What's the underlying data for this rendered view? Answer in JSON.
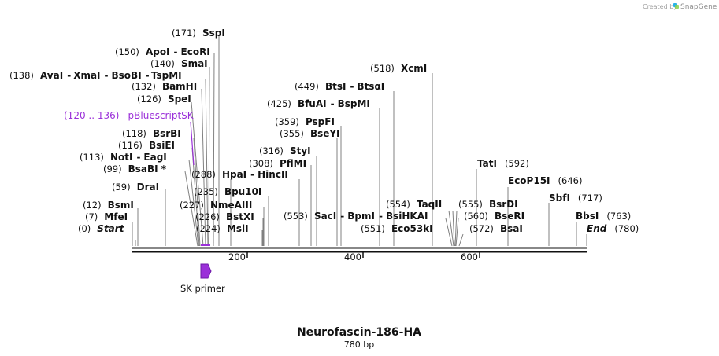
{
  "credit": {
    "prefix": "Created by",
    "product": "SnapGene"
  },
  "map": {
    "title": "Neurofascin-186-HA",
    "length_label": "780 bp",
    "axis_ticks": [
      "200",
      "400",
      "600"
    ],
    "end_labels": {
      "start": "Start",
      "end": "End"
    }
  },
  "colors": {
    "feature": "#9b30d9",
    "backbone": "#111111"
  },
  "site_labels": [
    {
      "pos": "(0)",
      "names": [
        {
          "text": "Start",
          "italic": true
        }
      ]
    },
    {
      "pos": "(7)",
      "names": [
        {
          "text": "MfeI"
        }
      ]
    },
    {
      "pos": "(12)",
      "names": [
        {
          "text": "BsmI"
        }
      ]
    },
    {
      "pos": "(59)",
      "names": [
        {
          "text": "DraI"
        }
      ]
    },
    {
      "pos": "(99)",
      "names": [
        {
          "text": "BsaBI *"
        }
      ]
    },
    {
      "pos": "(113)",
      "names": [
        {
          "text": "NotI"
        },
        {
          "text": "EagI"
        }
      ]
    },
    {
      "pos": "(116)",
      "names": [
        {
          "text": "BsiEI"
        }
      ]
    },
    {
      "pos": "(118)",
      "names": [
        {
          "text": "BsrBI"
        }
      ]
    },
    {
      "pos": "(126)",
      "names": [
        {
          "text": "SpeI"
        }
      ]
    },
    {
      "pos": "(132)",
      "names": [
        {
          "text": "BamHI"
        }
      ]
    },
    {
      "pos": "(138)",
      "names": [
        {
          "text": "AvaI"
        },
        {
          "text": "XmaI"
        },
        {
          "text": "BsoBI"
        },
        {
          "text": "TspMI"
        }
      ]
    },
    {
      "pos": "(140)",
      "names": [
        {
          "text": "SmaI"
        }
      ]
    },
    {
      "pos": "(150)",
      "names": [
        {
          "text": "ApoI"
        },
        {
          "text": "EcoRI"
        }
      ]
    },
    {
      "pos": "(171)",
      "names": [
        {
          "text": "SspI"
        }
      ]
    },
    {
      "pos": "(224)",
      "names": [
        {
          "text": "MslI"
        }
      ]
    },
    {
      "pos": "(226)",
      "names": [
        {
          "text": "BstXI"
        }
      ]
    },
    {
      "pos": "(227)",
      "names": [
        {
          "text": "NmeAIII"
        }
      ]
    },
    {
      "pos": "(235)",
      "names": [
        {
          "text": "Bpu10I"
        }
      ]
    },
    {
      "pos": "(288)",
      "names": [
        {
          "text": "HpaI"
        },
        {
          "text": "HincII"
        }
      ]
    },
    {
      "pos": "(308)",
      "names": [
        {
          "text": "PflMI"
        }
      ]
    },
    {
      "pos": "(316)",
      "names": [
        {
          "text": "StyI"
        }
      ]
    },
    {
      "pos": "(355)",
      "names": [
        {
          "text": "BseYI"
        }
      ]
    },
    {
      "pos": "(359)",
      "names": [
        {
          "text": "PspFI"
        }
      ]
    },
    {
      "pos": "(425)",
      "names": [
        {
          "text": "BfuAI"
        },
        {
          "text": "BspMI"
        }
      ]
    },
    {
      "pos": "(449)",
      "names": [
        {
          "text": "BtsI"
        },
        {
          "text": "BtsαI"
        }
      ]
    },
    {
      "pos": "(518)",
      "names": [
        {
          "text": "XcmI"
        }
      ]
    },
    {
      "pos": "(553)",
      "names": [
        {
          "text": "SacI"
        },
        {
          "text": "BpmI"
        },
        {
          "text": "BsiHKAI"
        }
      ]
    },
    {
      "pos": "(551)",
      "names": [
        {
          "text": "Eco53kI"
        }
      ]
    },
    {
      "pos": "(554)",
      "names": [
        {
          "text": "TaqII"
        }
      ]
    },
    {
      "pos": "(555)",
      "names": [
        {
          "text": "BsrDI"
        }
      ]
    },
    {
      "pos": "(560)",
      "names": [
        {
          "text": "BseRI"
        }
      ]
    },
    {
      "pos": "(572)",
      "names": [
        {
          "text": "BsaI"
        }
      ]
    },
    {
      "pos": "(592)",
      "names": [
        {
          "text": "TatI"
        }
      ]
    },
    {
      "pos": "(646)",
      "names": [
        {
          "text": "EcoP15I"
        }
      ]
    },
    {
      "pos": "(717)",
      "names": [
        {
          "text": "SbfI"
        }
      ]
    },
    {
      "pos": "(763)",
      "names": [
        {
          "text": "BbsI"
        }
      ]
    },
    {
      "pos": "(780)",
      "names": [
        {
          "text": "End",
          "italic": true
        }
      ]
    }
  ],
  "features": [
    {
      "label": "pBluescriptSK",
      "range": "(120 .. 136)"
    },
    {
      "label": "SK primer"
    }
  ]
}
